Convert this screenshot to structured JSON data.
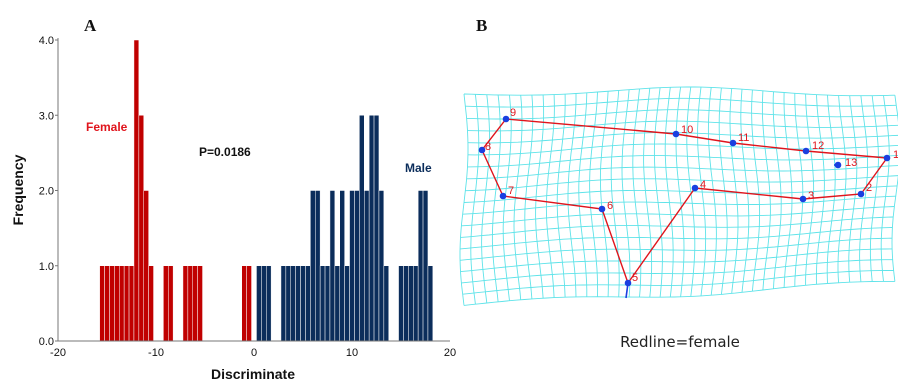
{
  "chart_data": [
    {
      "type": "bar",
      "panel": "A",
      "xlabel": "Discriminate",
      "ylabel": "Frequency",
      "xlim": [
        -20,
        20
      ],
      "ylim": [
        0,
        4
      ],
      "xticks": [
        "-20",
        "-10",
        "0",
        "10",
        "20"
      ],
      "yticks": [
        "0.0",
        "1.0",
        "2.0",
        "3.0",
        "4.0"
      ],
      "annotation": "P=0.0186",
      "colors": {
        "female": "#c00000",
        "male": "#0b2d5b"
      },
      "series": [
        {
          "name": "Female",
          "color": "#c00000",
          "bins": [
            {
              "x": -15.5,
              "y": 1
            },
            {
              "x": -15.0,
              "y": 1
            },
            {
              "x": -14.5,
              "y": 1
            },
            {
              "x": -14.0,
              "y": 1
            },
            {
              "x": -13.5,
              "y": 1
            },
            {
              "x": -13.0,
              "y": 1
            },
            {
              "x": -12.5,
              "y": 1
            },
            {
              "x": -12.0,
              "y": 4
            },
            {
              "x": -11.5,
              "y": 3
            },
            {
              "x": -11.0,
              "y": 2
            },
            {
              "x": -10.5,
              "y": 1
            },
            {
              "x": -9.0,
              "y": 1
            },
            {
              "x": -8.5,
              "y": 1
            },
            {
              "x": -7.0,
              "y": 1
            },
            {
              "x": -6.5,
              "y": 1
            },
            {
              "x": -6.0,
              "y": 1
            },
            {
              "x": -5.5,
              "y": 1
            },
            {
              "x": -1.0,
              "y": 1
            },
            {
              "x": -0.5,
              "y": 1
            }
          ]
        },
        {
          "name": "Male",
          "color": "#0b2d5b",
          "bins": [
            {
              "x": 0.5,
              "y": 1
            },
            {
              "x": 1.0,
              "y": 1
            },
            {
              "x": 1.5,
              "y": 1
            },
            {
              "x": 3.0,
              "y": 1
            },
            {
              "x": 3.5,
              "y": 1
            },
            {
              "x": 4.0,
              "y": 1
            },
            {
              "x": 4.5,
              "y": 1
            },
            {
              "x": 5.0,
              "y": 1
            },
            {
              "x": 5.5,
              "y": 1
            },
            {
              "x": 6.0,
              "y": 2
            },
            {
              "x": 6.5,
              "y": 2
            },
            {
              "x": 7.0,
              "y": 1
            },
            {
              "x": 7.5,
              "y": 1
            },
            {
              "x": 8.0,
              "y": 2
            },
            {
              "x": 8.5,
              "y": 1
            },
            {
              "x": 9.0,
              "y": 2
            },
            {
              "x": 9.5,
              "y": 1
            },
            {
              "x": 10.0,
              "y": 2
            },
            {
              "x": 10.5,
              "y": 2
            },
            {
              "x": 11.0,
              "y": 3
            },
            {
              "x": 11.5,
              "y": 2
            },
            {
              "x": 12.0,
              "y": 3
            },
            {
              "x": 12.5,
              "y": 3
            },
            {
              "x": 13.0,
              "y": 2
            },
            {
              "x": 13.5,
              "y": 1
            },
            {
              "x": 15.0,
              "y": 1
            },
            {
              "x": 15.5,
              "y": 1
            },
            {
              "x": 16.0,
              "y": 1
            },
            {
              "x": 16.5,
              "y": 1
            },
            {
              "x": 17.0,
              "y": 2
            },
            {
              "x": 17.5,
              "y": 2
            },
            {
              "x": 18.0,
              "y": 1
            }
          ]
        }
      ]
    },
    {
      "type": "diagram",
      "panel": "B",
      "caption": "Redline=female",
      "line_color": "#e0141c",
      "point_color": "#1a3fe0",
      "grid_color": "#5fe3e9",
      "landmarks": [
        {
          "label": "1"
        },
        {
          "label": "2"
        },
        {
          "label": "3"
        },
        {
          "label": "4"
        },
        {
          "label": "5"
        },
        {
          "label": "6"
        },
        {
          "label": "7"
        },
        {
          "label": "8"
        },
        {
          "label": "9"
        },
        {
          "label": "10"
        },
        {
          "label": "11"
        },
        {
          "label": "12"
        },
        {
          "label": "13"
        }
      ]
    }
  ]
}
